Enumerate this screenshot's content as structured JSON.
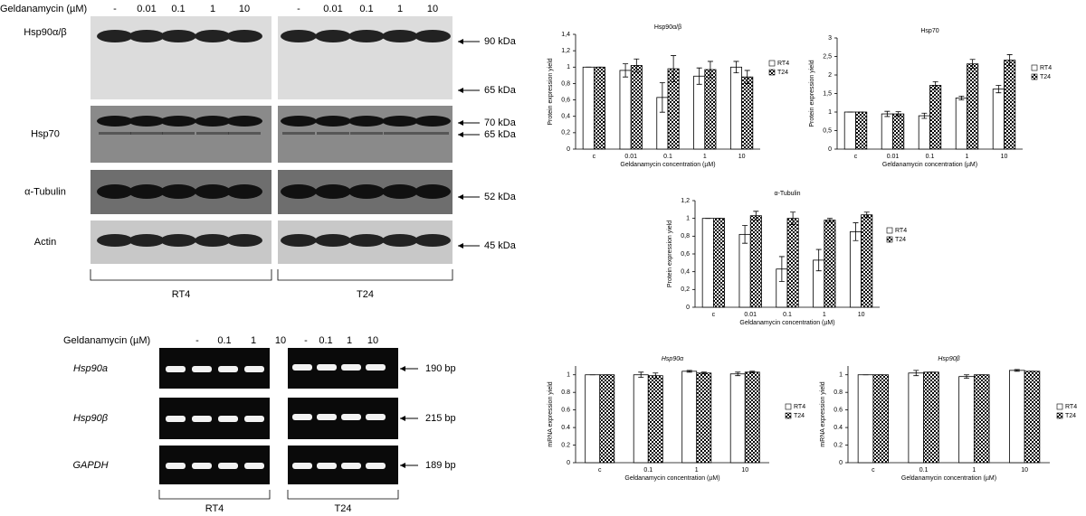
{
  "blots": {
    "treatment": "Geldanamycin (µM)",
    "lanes": [
      "-",
      "0.01",
      "0.1",
      "1",
      "10"
    ],
    "proteins": [
      "Hsp90α/β",
      "Hsp70",
      "α-Tubulin",
      "Actin"
    ],
    "sizes": [
      "90 kDa",
      "65 kDa",
      "70 kDa",
      "65 kDa",
      "52 kDa",
      "45 kDa"
    ],
    "cell_lines": [
      "RT4",
      "T24"
    ]
  },
  "gels": {
    "treatment": "Geldanamycin (µM)",
    "lanes": [
      "-",
      "0.1",
      "1",
      "10"
    ],
    "genes": [
      "Hsp90a",
      "Hsp90β",
      "GAPDH"
    ],
    "sizes": [
      "190 bp",
      "215 bp",
      "189 bp"
    ],
    "cell_lines": [
      "RT4",
      "T24"
    ]
  },
  "chart_data": [
    {
      "type": "bar",
      "title": "Hsp90α/β",
      "x_label": "Geldanamycin concentration (µM)",
      "y_label": "Protein expression yield",
      "categories": [
        "c",
        "0.01",
        "0.1",
        "1",
        "10"
      ],
      "series": [
        {
          "name": "RT4",
          "color": "#ffffff",
          "values": [
            1,
            0.96,
            0.63,
            0.89,
            1.0
          ],
          "errors": [
            0,
            0.08,
            0.18,
            0.1,
            0.07
          ]
        },
        {
          "name": "T24",
          "color": "#000000",
          "values": [
            1,
            1.02,
            0.98,
            0.97,
            0.88
          ],
          "errors": [
            0,
            0.08,
            0.16,
            0.1,
            0.08
          ]
        }
      ],
      "ylim": [
        0,
        1.4
      ],
      "yticks": [
        0,
        {
          "value": 0.2,
          "label": "0,2"
        },
        {
          "value": 0.4,
          "label": "0,4"
        },
        {
          "value": 0.6,
          "label": "0,6"
        },
        {
          "value": 0.8,
          "label": "0,8"
        },
        1,
        {
          "value": 1.2,
          "label": "1,2"
        },
        {
          "value": 1.4,
          "label": "1,4"
        }
      ]
    },
    {
      "type": "bar",
      "title": "Hsp70",
      "x_label": "Geldanamycin concentration (µM)",
      "y_label": "Protein expression yield",
      "categories": [
        "c",
        "0.01",
        "0.1",
        "1",
        "10"
      ],
      "series": [
        {
          "name": "RT4",
          "color": "#ffffff",
          "values": [
            1,
            0.95,
            0.9,
            1.38,
            1.62
          ],
          "errors": [
            0,
            0.07,
            0.07,
            0.05,
            0.1
          ]
        },
        {
          "name": "T24",
          "color": "#000000",
          "values": [
            1,
            0.95,
            1.72,
            2.3,
            2.4
          ],
          "errors": [
            0,
            0.06,
            0.1,
            0.12,
            0.15
          ]
        }
      ],
      "ylim": [
        0,
        3
      ],
      "yticks": [
        0,
        {
          "value": 0.5,
          "label": "0,5"
        },
        1,
        {
          "value": 1.5,
          "label": "1,5"
        },
        2,
        {
          "value": 2.5,
          "label": "2,5"
        },
        3
      ]
    },
    {
      "type": "bar",
      "title": "α-Tubulin",
      "x_label": "Geldanamycin concentration (µM)",
      "y_label": "Protein expression yield",
      "categories": [
        "c",
        "0.01",
        "0.1",
        "1",
        "10"
      ],
      "series": [
        {
          "name": "RT4",
          "color": "#ffffff",
          "values": [
            1,
            0.82,
            0.43,
            0.53,
            0.85
          ],
          "errors": [
            0,
            0.1,
            0.14,
            0.12,
            0.1
          ]
        },
        {
          "name": "T24",
          "color": "#000000",
          "values": [
            1,
            1.03,
            1.0,
            0.98,
            1.04
          ],
          "errors": [
            0,
            0.05,
            0.07,
            0.02,
            0.03
          ]
        }
      ],
      "ylim": [
        0,
        1.2
      ],
      "yticks": [
        0,
        {
          "value": 0.2,
          "label": "0,2"
        },
        {
          "value": 0.4,
          "label": "0,4"
        },
        {
          "value": 0.6,
          "label": "0,6"
        },
        {
          "value": 0.8,
          "label": "0,8"
        },
        1,
        {
          "value": 1.2,
          "label": "1,2"
        }
      ]
    },
    {
      "type": "bar",
      "title": "Hsp90α",
      "x_label": "Geldanamycin concentration (µM)",
      "y_label": "mRNA expression yield",
      "categories": [
        "c",
        "0.1",
        "1",
        "10"
      ],
      "series": [
        {
          "name": "RT4",
          "color": "#ffffff",
          "values": [
            1,
            1.0,
            1.04,
            1.01
          ],
          "errors": [
            0,
            0.03,
            0.01,
            0.02
          ]
        },
        {
          "name": "T24",
          "color": "#000000",
          "values": [
            1,
            0.99,
            1.02,
            1.03
          ],
          "errors": [
            0,
            0.03,
            0.01,
            0.01
          ]
        }
      ],
      "ylim": [
        0,
        1.1
      ],
      "yticks": [
        0,
        0.2,
        0.4,
        0.6,
        0.8,
        1
      ]
    },
    {
      "type": "bar",
      "title": "Hsp90β",
      "x_label": "Geldanamycin concentration (µM)",
      "y_label": "mRNA expression yield",
      "categories": [
        "c",
        "0.1",
        "1",
        "10"
      ],
      "series": [
        {
          "name": "RT4",
          "color": "#ffffff",
          "values": [
            1,
            1.02,
            0.98,
            1.05
          ],
          "errors": [
            0,
            0.03,
            0.02,
            0.01
          ]
        },
        {
          "name": "T24",
          "color": "#000000",
          "values": [
            1,
            1.03,
            1.0,
            1.04
          ],
          "errors": [
            0,
            0.0,
            0.0,
            0.0
          ]
        }
      ],
      "ylim": [
        0,
        1.1
      ],
      "yticks": [
        0,
        0.2,
        0.4,
        0.6,
        0.8,
        1
      ]
    }
  ]
}
